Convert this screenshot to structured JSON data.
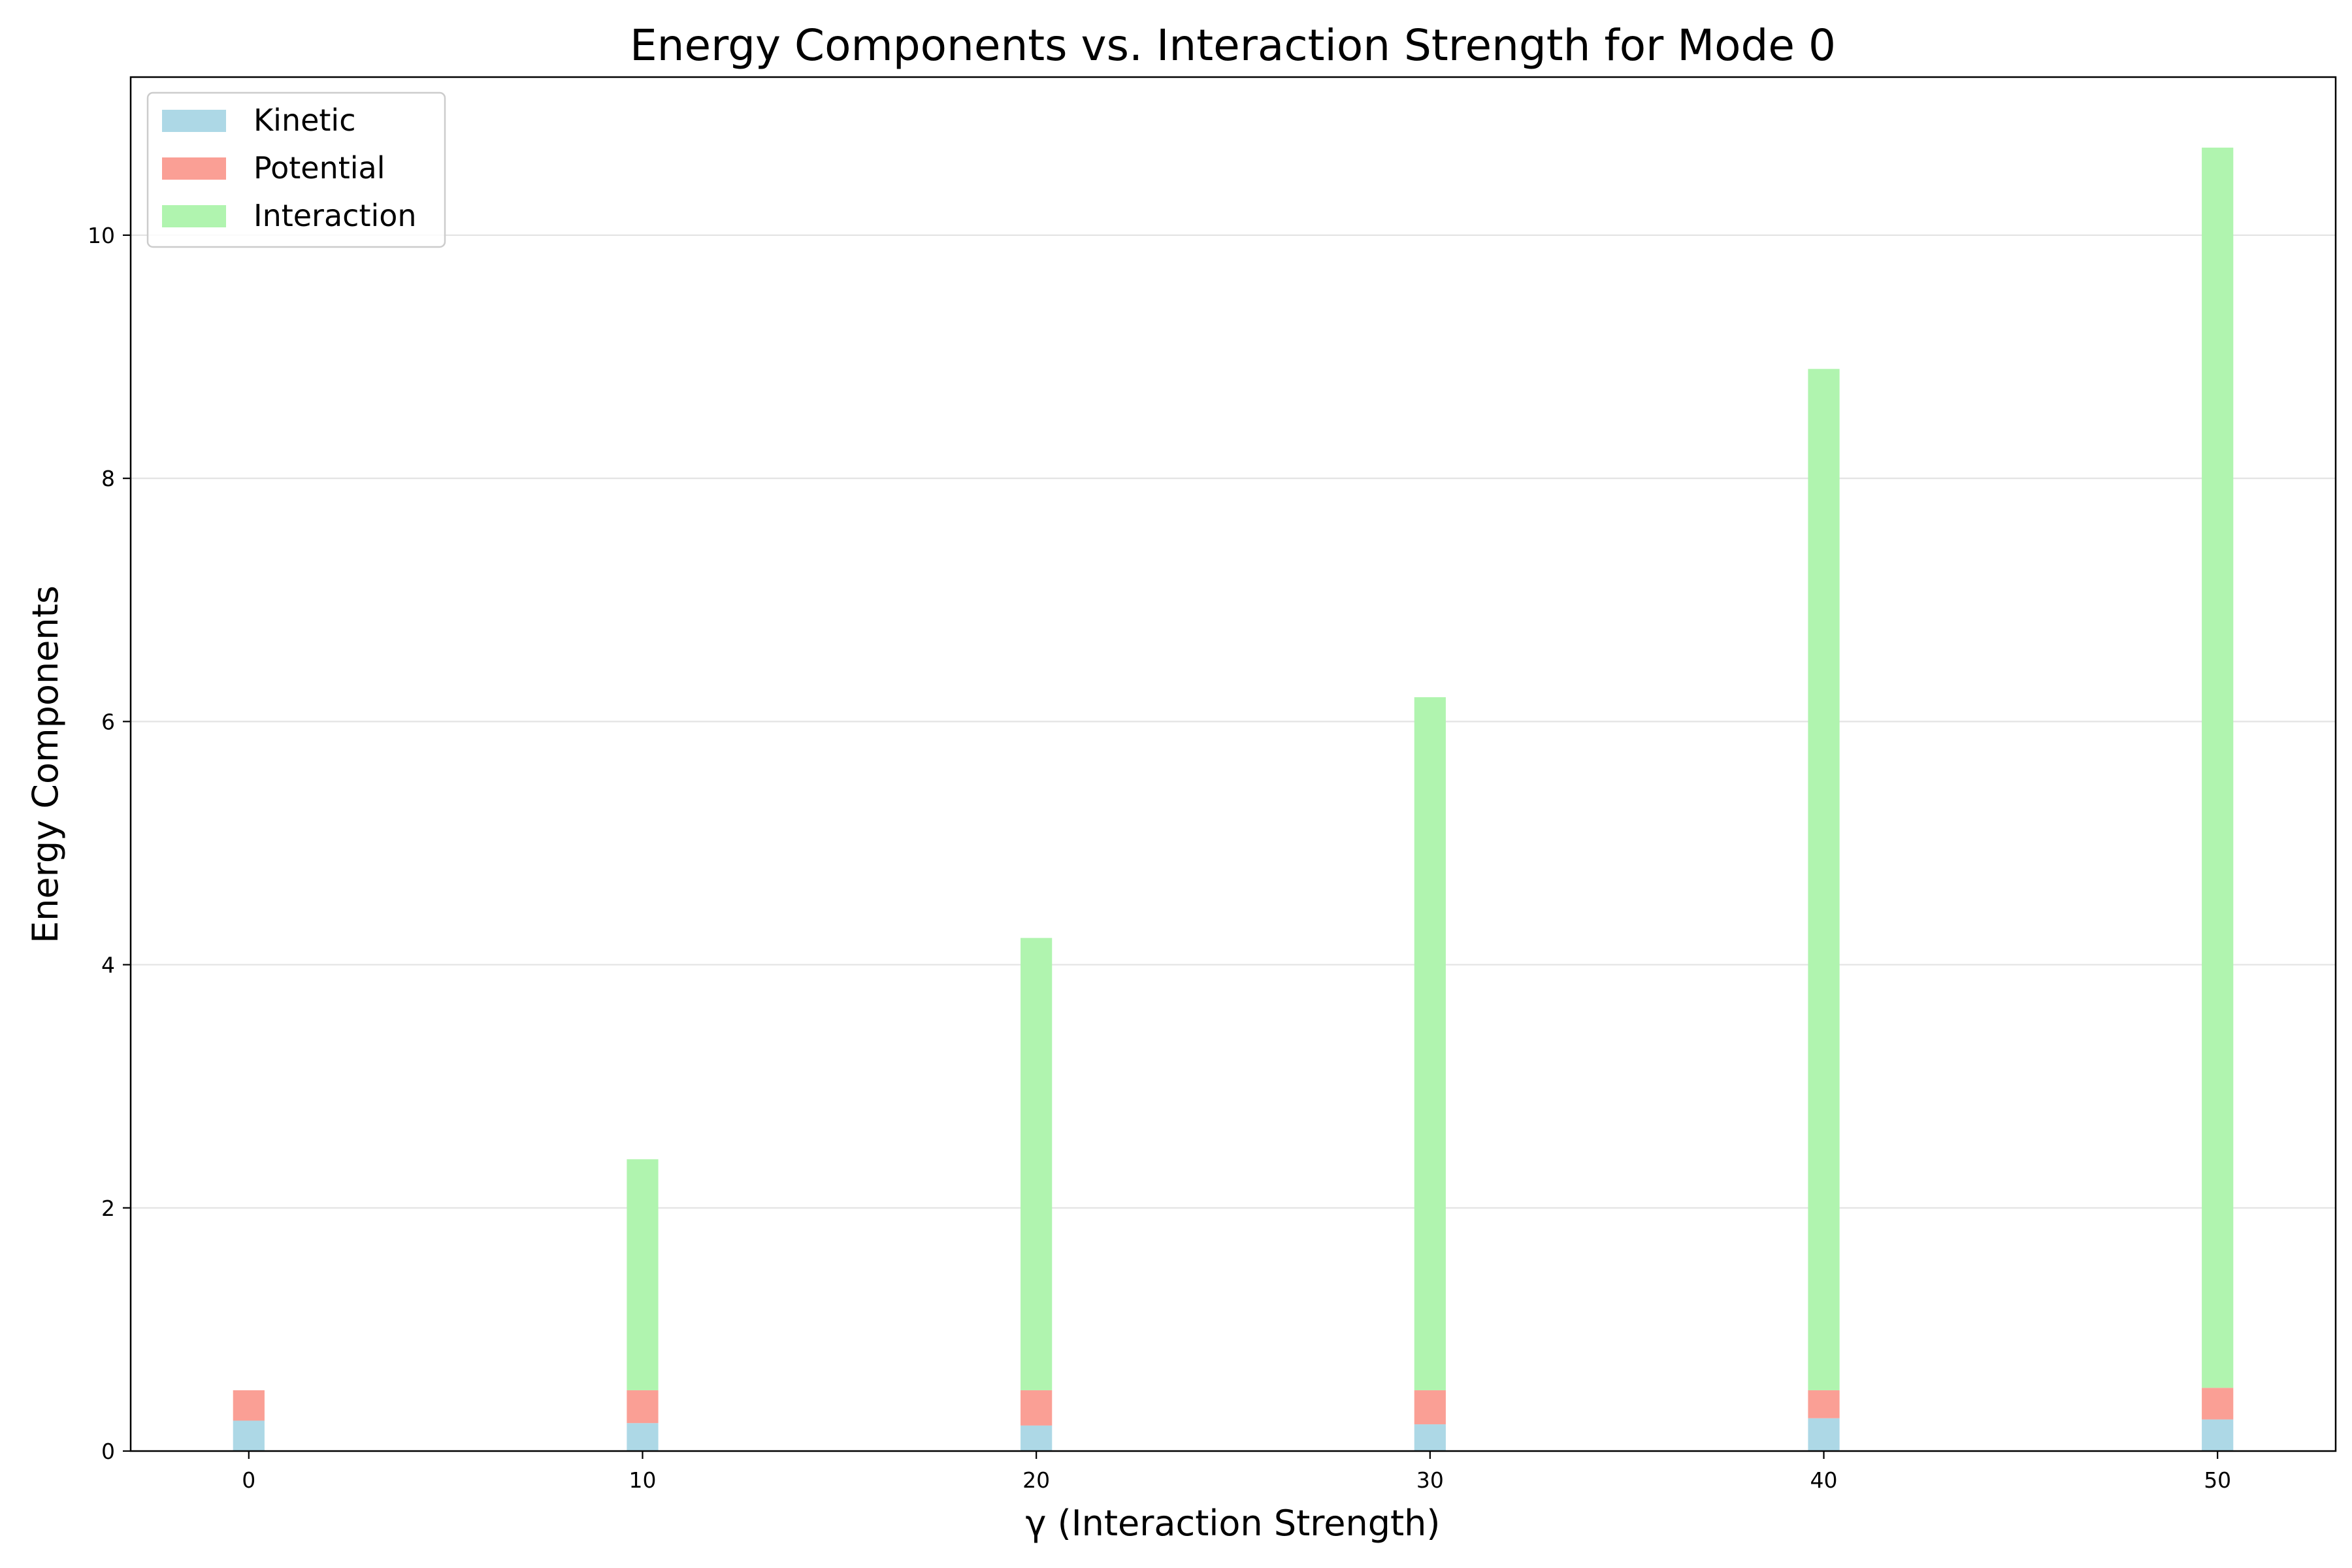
{
  "chart_data": {
    "type": "bar",
    "stacked": true,
    "title": "Energy Components vs. Interaction Strength for Mode 0",
    "xlabel": "γ (Interaction Strength)",
    "ylabel": "Energy Components",
    "x": [
      0,
      10,
      20,
      30,
      40,
      50
    ],
    "xlim": [
      -3,
      53
    ],
    "ylim": [
      0,
      11.3
    ],
    "xticks": [
      0,
      10,
      20,
      30,
      40,
      50
    ],
    "yticks": [
      0,
      2,
      4,
      6,
      8,
      10
    ],
    "bar_width": 0.8,
    "grid": {
      "y": true,
      "x": false
    },
    "legend_position": "top-left",
    "series": [
      {
        "name": "Kinetic",
        "color": "#add8e6",
        "values": [
          0.25,
          0.23,
          0.21,
          0.22,
          0.27,
          0.26
        ]
      },
      {
        "name": "Potential",
        "color": "#fa9f95",
        "values": [
          0.25,
          0.27,
          0.29,
          0.28,
          0.23,
          0.26
        ]
      },
      {
        "name": "Interaction",
        "color": "#b0f4af",
        "values": [
          0.0,
          1.9,
          3.72,
          5.7,
          8.4,
          10.2
        ]
      }
    ]
  }
}
